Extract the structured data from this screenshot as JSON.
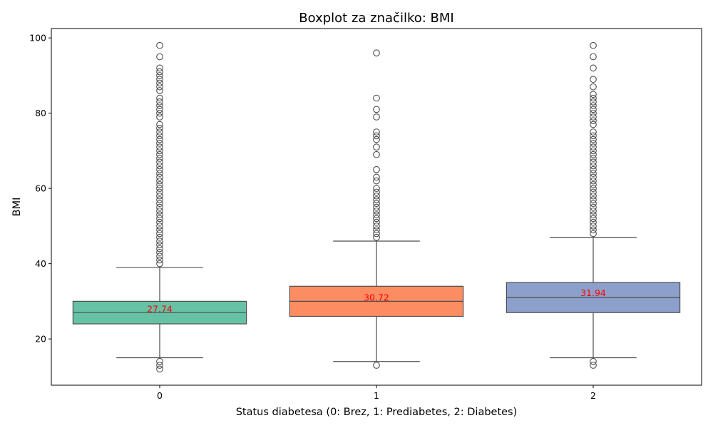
{
  "chart_data": {
    "type": "boxplot",
    "title": "Boxplot za značilko: BMI",
    "xlabel": "Status diabetesa (0: Brez, 1: Prediabetes, 2: Diabetes)",
    "ylabel": "BMI",
    "ylim": [
      7.7,
      102.5
    ],
    "yticks": [
      20,
      40,
      60,
      80,
      100
    ],
    "categories": [
      "0",
      "1",
      "2"
    ],
    "colors": [
      "#66c2a5",
      "#fc8d62",
      "#8da0cb"
    ],
    "boxes": [
      {
        "category": "0",
        "q1": 24,
        "median": 27,
        "q3": 30,
        "whisker_low": 15,
        "whisker_high": 39,
        "mean": 27.74,
        "mean_label": "27.74",
        "outliers": [
          12,
          13,
          14,
          40,
          41,
          42,
          43,
          44,
          45,
          46,
          47,
          48,
          49,
          50,
          51,
          52,
          53,
          54,
          55,
          56,
          57,
          58,
          59,
          60,
          61,
          62,
          63,
          64,
          65,
          66,
          67,
          68,
          69,
          70,
          71,
          72,
          73,
          74,
          75,
          76,
          77,
          79,
          80,
          81,
          82,
          83,
          84,
          86,
          87,
          88,
          89,
          90,
          91,
          92,
          95,
          98
        ]
      },
      {
        "category": "1",
        "q1": 26,
        "median": 30,
        "q3": 34,
        "whisker_low": 14,
        "whisker_high": 46,
        "mean": 30.72,
        "mean_label": "30.72",
        "outliers": [
          13,
          47,
          48,
          49,
          50,
          51,
          52,
          53,
          54,
          55,
          56,
          57,
          58,
          59,
          60,
          62,
          63,
          65,
          69,
          71,
          73,
          74,
          75,
          79,
          81,
          84,
          96
        ]
      },
      {
        "category": "2",
        "q1": 27,
        "median": 31,
        "q3": 35,
        "whisker_low": 15,
        "whisker_high": 47,
        "mean": 31.94,
        "mean_label": "31.94",
        "outliers": [
          13,
          14,
          48,
          49,
          50,
          51,
          52,
          53,
          54,
          55,
          56,
          57,
          58,
          59,
          60,
          61,
          62,
          63,
          64,
          65,
          66,
          67,
          68,
          69,
          70,
          71,
          72,
          73,
          74,
          75,
          77,
          78,
          79,
          80,
          81,
          82,
          83,
          84,
          85,
          87,
          89,
          92,
          95,
          98
        ]
      }
    ]
  }
}
